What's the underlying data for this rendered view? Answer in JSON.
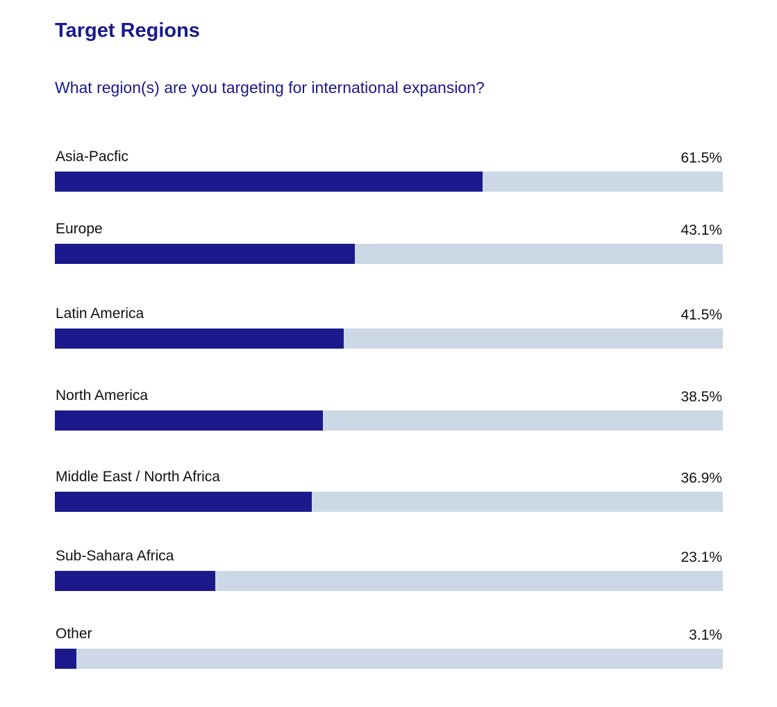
{
  "title": "Target Regions",
  "question": "What region(s) are you targeting for international expansion?",
  "colors": {
    "bar": "#1b198b",
    "track": "#cdd8e6",
    "heading": "#1b198b"
  },
  "chart_data": {
    "type": "bar",
    "orientation": "horizontal",
    "categories": [
      "Asia-Pacfic",
      "Europe",
      "Latin America",
      "North America",
      "Middle East / North Africa",
      "Sub-Sahara Africa",
      "Other"
    ],
    "values": [
      61.5,
      43.1,
      41.5,
      38.5,
      36.9,
      23.1,
      3.1
    ],
    "value_labels": [
      "61.5%",
      "43.1%",
      "41.5%",
      "38.5%",
      "36.9%",
      "23.1%",
      "3.1%"
    ],
    "unit": "%",
    "xlim": [
      0,
      96
    ]
  }
}
